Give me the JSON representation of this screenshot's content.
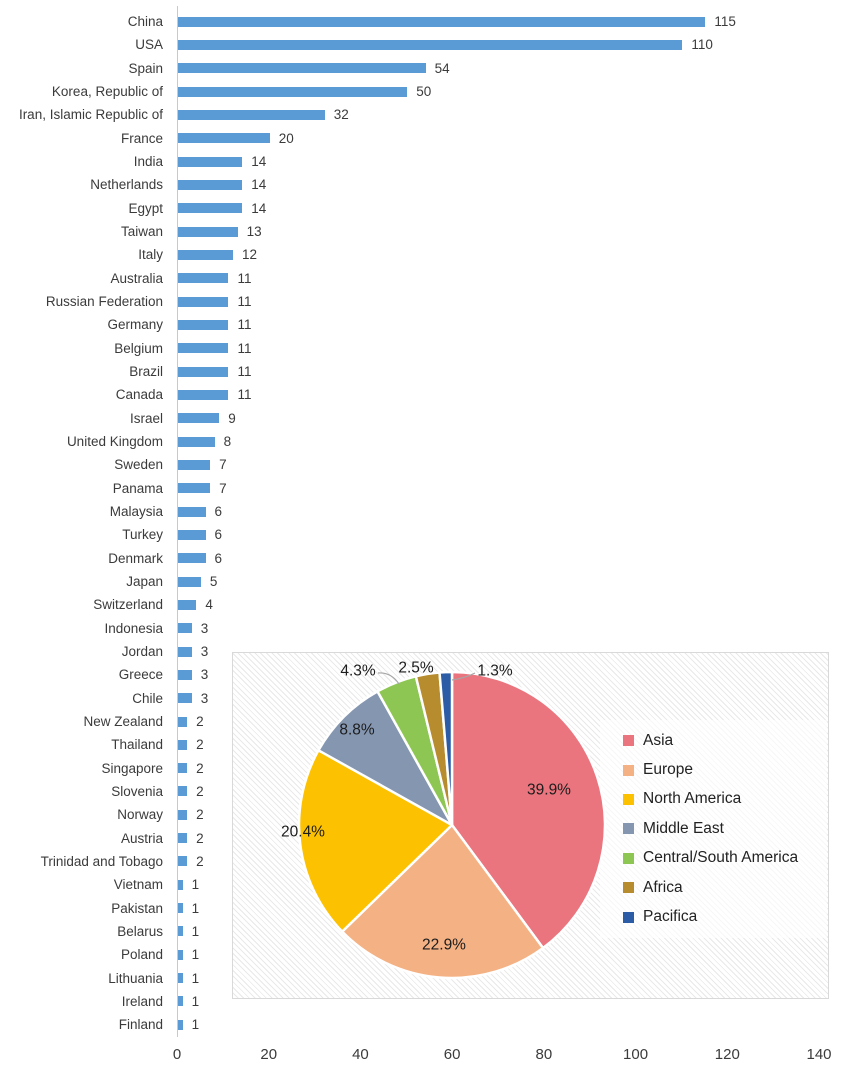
{
  "chart_data": [
    {
      "type": "bar",
      "orientation": "horizontal",
      "title": "",
      "xlabel": "",
      "ylabel": "",
      "xlim": [
        0,
        140
      ],
      "x_ticks": [
        0,
        20,
        40,
        60,
        80,
        100,
        120,
        140
      ],
      "grid": false,
      "bar_color": "#5B9BD5",
      "value_labels_shown": true,
      "categories": [
        "China",
        "USA",
        "Spain",
        "Korea, Republic of",
        "Iran, Islamic Republic of",
        "France",
        "India",
        "Netherlands",
        "Egypt",
        "Taiwan",
        "Italy",
        "Australia",
        "Russian Federation",
        "Germany",
        "Belgium",
        "Brazil",
        "Canada",
        "Israel",
        "United Kingdom",
        "Sweden",
        "Panama",
        "Malaysia",
        "Turkey",
        "Denmark",
        "Japan",
        "Switzerland",
        "Indonesia",
        "Jordan",
        "Greece",
        "Chile",
        "New Zealand",
        "Thailand",
        "Singapore",
        "Slovenia",
        "Norway",
        "Austria",
        "Trinidad and Tobago",
        "Vietnam",
        "Pakistan",
        "Belarus",
        "Poland",
        "Lithuania",
        "Ireland",
        "Finland"
      ],
      "values": [
        115,
        110,
        54,
        50,
        32,
        20,
        14,
        14,
        14,
        13,
        12,
        11,
        11,
        11,
        11,
        11,
        11,
        9,
        8,
        7,
        7,
        6,
        6,
        6,
        5,
        4,
        3,
        3,
        3,
        3,
        2,
        2,
        2,
        2,
        2,
        2,
        2,
        1,
        1,
        1,
        1,
        1,
        1,
        1
      ]
    },
    {
      "type": "pie",
      "title": "",
      "start_angle": "top",
      "direction": "clockwise",
      "legend_position": "right",
      "background": "diagonal-hatch",
      "slices": [
        {
          "label": "Asia",
          "value": 39.9,
          "display": "39.9%",
          "color": "#EA757E"
        },
        {
          "label": "Europe",
          "value": 22.9,
          "display": "22.9%",
          "color": "#F4B183"
        },
        {
          "label": "North America",
          "value": 20.4,
          "display": "20.4%",
          "color": "#FCC101"
        },
        {
          "label": "Middle East",
          "value": 8.8,
          "display": "8.8%",
          "color": "#8496B0"
        },
        {
          "label": "Central/South America",
          "value": 4.3,
          "display": "4.3%",
          "color": "#8EC654"
        },
        {
          "label": "Africa",
          "value": 2.5,
          "display": "2.5%",
          "color": "#B78C2E"
        },
        {
          "label": "Pacifica",
          "value": 1.3,
          "display": "1.3%",
          "color": "#2B5CA5"
        }
      ]
    }
  ]
}
